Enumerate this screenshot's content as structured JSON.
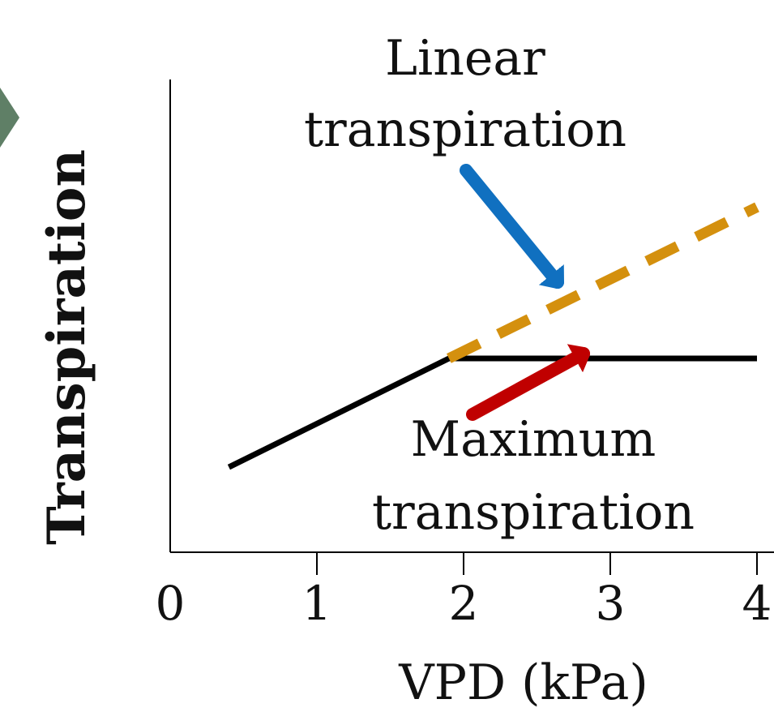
{
  "chart_data": {
    "type": "line",
    "title": "",
    "xlabel": "VPD (kPa)",
    "ylabel": "Transpiration",
    "xlim": [
      0,
      4
    ],
    "x_ticks": [
      0,
      1,
      2,
      3,
      4
    ],
    "x_tick_labels": [
      "0",
      "1",
      "2",
      "3",
      "4"
    ],
    "grid": false,
    "series": [
      {
        "style": "solid",
        "color": "#000000",
        "x": [
          0.4,
          1.9,
          4.0
        ],
        "y": [
          0.18,
          0.41,
          0.41
        ]
      },
      {
        "style": "dashed",
        "color": "#D4900E",
        "x": [
          1.9,
          4.0
        ],
        "y": [
          0.41,
          0.73
        ]
      }
    ],
    "annotations": [
      {
        "line1": "Linear",
        "line2": "transpiration",
        "arrow_color": "#1070C0"
      },
      {
        "line1": "Maximum",
        "line2": "transpiration",
        "arrow_color": "#C00000"
      }
    ]
  },
  "decorations": {
    "corner_marker_color": "#5F7F66"
  }
}
